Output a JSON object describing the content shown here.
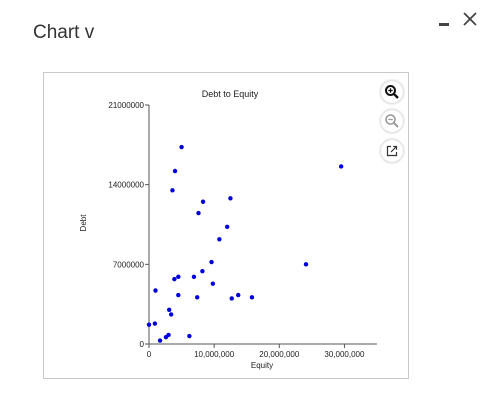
{
  "panel": {
    "title": "Chart v"
  },
  "icons": {
    "minimize": "minimize-icon",
    "close": "close-icon",
    "zoom_in": "zoom-in-icon",
    "zoom_out": "zoom-out-icon",
    "open_external": "open-external-icon"
  },
  "colors": {
    "points": "#0000dd",
    "zoom_active": "#111111",
    "zoom_inactive": "#9a9a9a"
  },
  "chart_data": {
    "type": "scatter",
    "title": "Debt to Equity",
    "xlabel": "Equity",
    "ylabel": "Debt",
    "xlim": [
      0,
      35000000
    ],
    "ylim": [
      0,
      21000000
    ],
    "x_ticks": [
      0,
      10000000,
      20000000,
      30000000
    ],
    "x_tick_labels": [
      "0",
      "10,000,000",
      "20,000,000",
      "30,000,000"
    ],
    "y_ticks": [
      0,
      7000000,
      14000000,
      21000000
    ],
    "y_tick_labels": [
      "0",
      "7000000",
      "14000000",
      "21000000"
    ],
    "grid": false,
    "legend": "none",
    "series": [
      {
        "x": [
          0,
          900000,
          1000000,
          1700000,
          2600000,
          3000000,
          3100000,
          3400000,
          3600000,
          3900000,
          4000000,
          4500000,
          4500000,
          5000000,
          6200000,
          6900000,
          7400000,
          7600000,
          8200000,
          8300000,
          9600000,
          9800000,
          10800000,
          12000000,
          12500000,
          12700000,
          13700000,
          15800000,
          24100000,
          29500000
        ],
        "y": [
          1700000,
          1800000,
          4700000,
          300000,
          600000,
          800000,
          3000000,
          2600000,
          13500000,
          5700000,
          15200000,
          5900000,
          4300000,
          17300000,
          700000,
          5900000,
          4100000,
          11500000,
          6400000,
          12500000,
          7200000,
          5300000,
          9200000,
          10300000,
          12800000,
          4000000,
          4300000,
          4100000,
          7000000,
          15600000
        ]
      }
    ]
  }
}
